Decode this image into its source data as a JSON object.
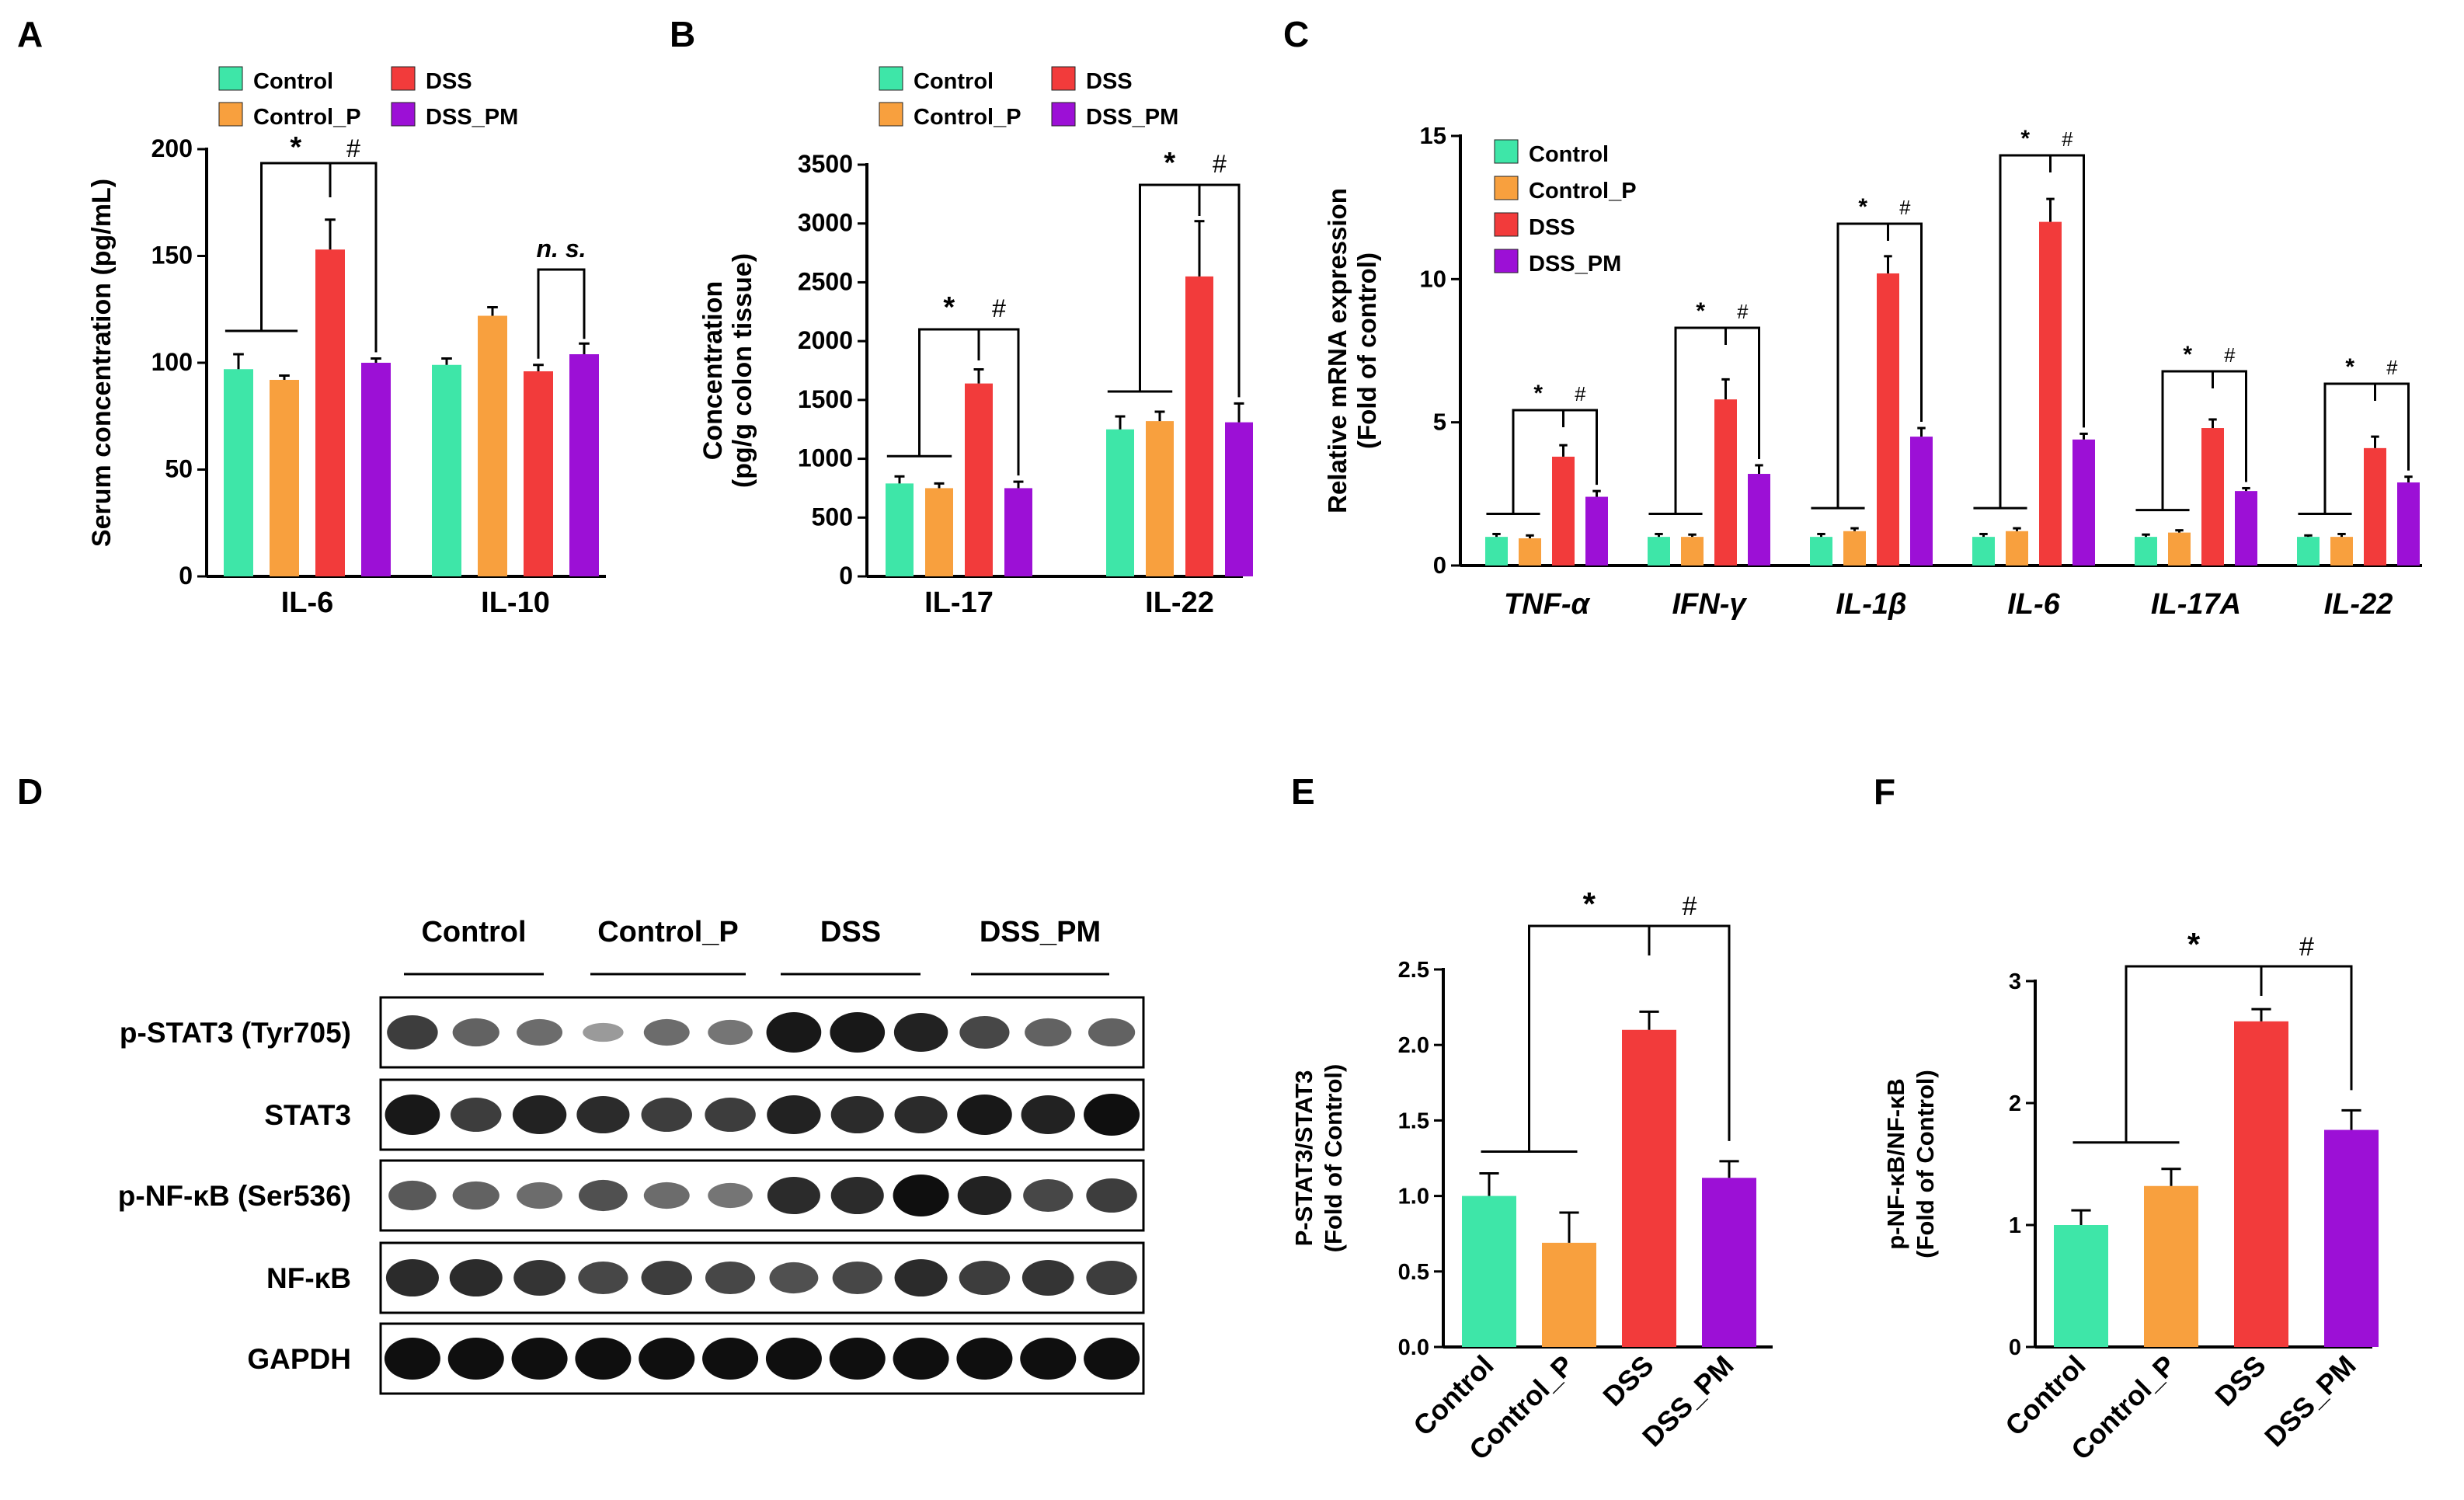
{
  "figure": {
    "panel_letters": [
      "A",
      "B",
      "C",
      "D",
      "E",
      "F"
    ]
  },
  "colors": {
    "Control": "#3ee6a8",
    "Control_P": "#f8a03e",
    "DSS": "#f23b3b",
    "DSS_PM": "#9c10d6",
    "legend_DSS_PM": "#0a10e8"
  },
  "chart_data": [
    {
      "id": "A",
      "type": "bar",
      "title": "",
      "xlabel": "",
      "ylabel": "Serum concentration (pg/mL)",
      "ylim": [
        0,
        200
      ],
      "yticks": [
        0,
        50,
        100,
        150,
        200
      ],
      "categories": [
        "IL-6",
        "IL-10"
      ],
      "series": [
        {
          "name": "Control",
          "values": [
            97,
            99
          ],
          "errors": [
            7,
            3
          ]
        },
        {
          "name": "Control_P",
          "values": [
            92,
            122
          ],
          "errors": [
            2,
            4
          ]
        },
        {
          "name": "DSS",
          "values": [
            153,
            96
          ],
          "errors": [
            14,
            3
          ]
        },
        {
          "name": "DSS_PM",
          "values": [
            100,
            104
          ],
          "errors": [
            2,
            5
          ]
        }
      ],
      "legend": [
        "Control",
        "DSS",
        "Control_P",
        "DSS_PM"
      ],
      "annotations": [
        "*",
        "#",
        "n. s."
      ]
    },
    {
      "id": "B",
      "type": "bar",
      "title": "",
      "xlabel": "",
      "ylabel": "Concentration (pg/g colon tissue)",
      "ylim": [
        0,
        3500
      ],
      "yticks": [
        0,
        500,
        1000,
        1500,
        2000,
        2500,
        3000,
        3500
      ],
      "categories": [
        "IL-17",
        "IL-22"
      ],
      "series": [
        {
          "name": "Control",
          "values": [
            790,
            1250
          ],
          "errors": [
            60,
            110
          ]
        },
        {
          "name": "Control_P",
          "values": [
            750,
            1320
          ],
          "errors": [
            40,
            80
          ]
        },
        {
          "name": "DSS",
          "values": [
            1640,
            2550
          ],
          "errors": [
            120,
            470
          ]
        },
        {
          "name": "DSS_PM",
          "values": [
            750,
            1310
          ],
          "errors": [
            55,
            160
          ]
        }
      ],
      "legend": [
        "Control",
        "DSS",
        "Control_P",
        "DSS_PM"
      ],
      "annotations": [
        "*",
        "#"
      ]
    },
    {
      "id": "C",
      "type": "bar",
      "title": "",
      "xlabel": "",
      "ylabel": "Relative mRNA expression (Fold of control)",
      "ylim": [
        0,
        15
      ],
      "yticks": [
        0,
        5,
        10,
        15
      ],
      "categories": [
        "TNF-α",
        "IFN-γ",
        "IL-1β",
        "IL-6",
        "IL-17A",
        "IL-22"
      ],
      "series": [
        {
          "name": "Control",
          "values": [
            1.0,
            1.0,
            1.0,
            1.0,
            1.0,
            1.0
          ],
          "errors": [
            0.1,
            0.1,
            0.1,
            0.1,
            0.08,
            0.05
          ]
        },
        {
          "name": "Control_P",
          "values": [
            0.95,
            1.0,
            1.2,
            1.2,
            1.15,
            1.0
          ],
          "errors": [
            0.1,
            0.08,
            0.1,
            0.1,
            0.08,
            0.1
          ]
        },
        {
          "name": "DSS",
          "values": [
            3.8,
            5.8,
            10.2,
            12.0,
            4.8,
            4.1
          ],
          "errors": [
            0.4,
            0.7,
            0.6,
            0.8,
            0.3,
            0.4
          ]
        },
        {
          "name": "DSS_PM",
          "values": [
            2.4,
            3.2,
            4.5,
            4.4,
            2.6,
            2.9
          ],
          "errors": [
            0.2,
            0.3,
            0.3,
            0.2,
            0.1,
            0.2
          ]
        }
      ],
      "legend": [
        "Control",
        "Control_P",
        "DSS",
        "DSS_PM"
      ],
      "annotations": [
        "*",
        "#"
      ]
    },
    {
      "id": "E",
      "type": "bar",
      "title": "",
      "xlabel": "",
      "ylabel": "P-STAT3/STAT3 (Fold of Control)",
      "ylim": [
        0,
        2.5
      ],
      "yticks": [
        0.0,
        0.5,
        1.0,
        1.5,
        2.0,
        2.5
      ],
      "categories": [
        "Control",
        "Control_P",
        "DSS",
        "DSS_PM"
      ],
      "values": [
        1.0,
        0.69,
        2.1,
        1.12
      ],
      "errors": [
        0.15,
        0.2,
        0.12,
        0.11
      ],
      "annotations": [
        "*",
        "#"
      ]
    },
    {
      "id": "F",
      "type": "bar",
      "title": "",
      "xlabel": "",
      "ylabel": "p-NF-κB/NF-κB (Fold of Control)",
      "ylim": [
        0,
        3
      ],
      "yticks": [
        0,
        1,
        2,
        3
      ],
      "categories": [
        "Control",
        "Control_P",
        "DSS",
        "DSS_PM"
      ],
      "values": [
        1.0,
        1.32,
        2.67,
        1.78
      ],
      "errors": [
        0.12,
        0.14,
        0.1,
        0.16
      ],
      "annotations": [
        "*",
        "#"
      ]
    }
  ],
  "western_blot": {
    "groups": [
      "Control",
      "Control_P",
      "DSS",
      "DSS_PM"
    ],
    "rows": [
      {
        "label": "p-STAT3 (Tyr705)",
        "intensities": [
          0.75,
          0.55,
          0.5,
          0.25,
          0.5,
          0.45,
          0.95,
          0.95,
          0.9,
          0.7,
          0.55,
          0.55
        ]
      },
      {
        "label": "STAT3",
        "intensities": [
          0.95,
          0.75,
          0.9,
          0.85,
          0.75,
          0.75,
          0.9,
          0.85,
          0.85,
          0.95,
          0.9,
          1.0
        ]
      },
      {
        "label": "p-NF-κB (Ser536)",
        "intensities": [
          0.6,
          0.55,
          0.5,
          0.65,
          0.5,
          0.45,
          0.85,
          0.85,
          1.0,
          0.9,
          0.7,
          0.75
        ]
      },
      {
        "label": "NF-κB",
        "intensities": [
          0.85,
          0.85,
          0.8,
          0.7,
          0.75,
          0.7,
          0.65,
          0.7,
          0.85,
          0.75,
          0.8,
          0.75
        ]
      },
      {
        "label": "GAPDH",
        "intensities": [
          1.0,
          1.0,
          1.0,
          1.0,
          1.0,
          1.0,
          1.0,
          1.0,
          1.0,
          1.0,
          1.0,
          1.0
        ]
      }
    ]
  }
}
